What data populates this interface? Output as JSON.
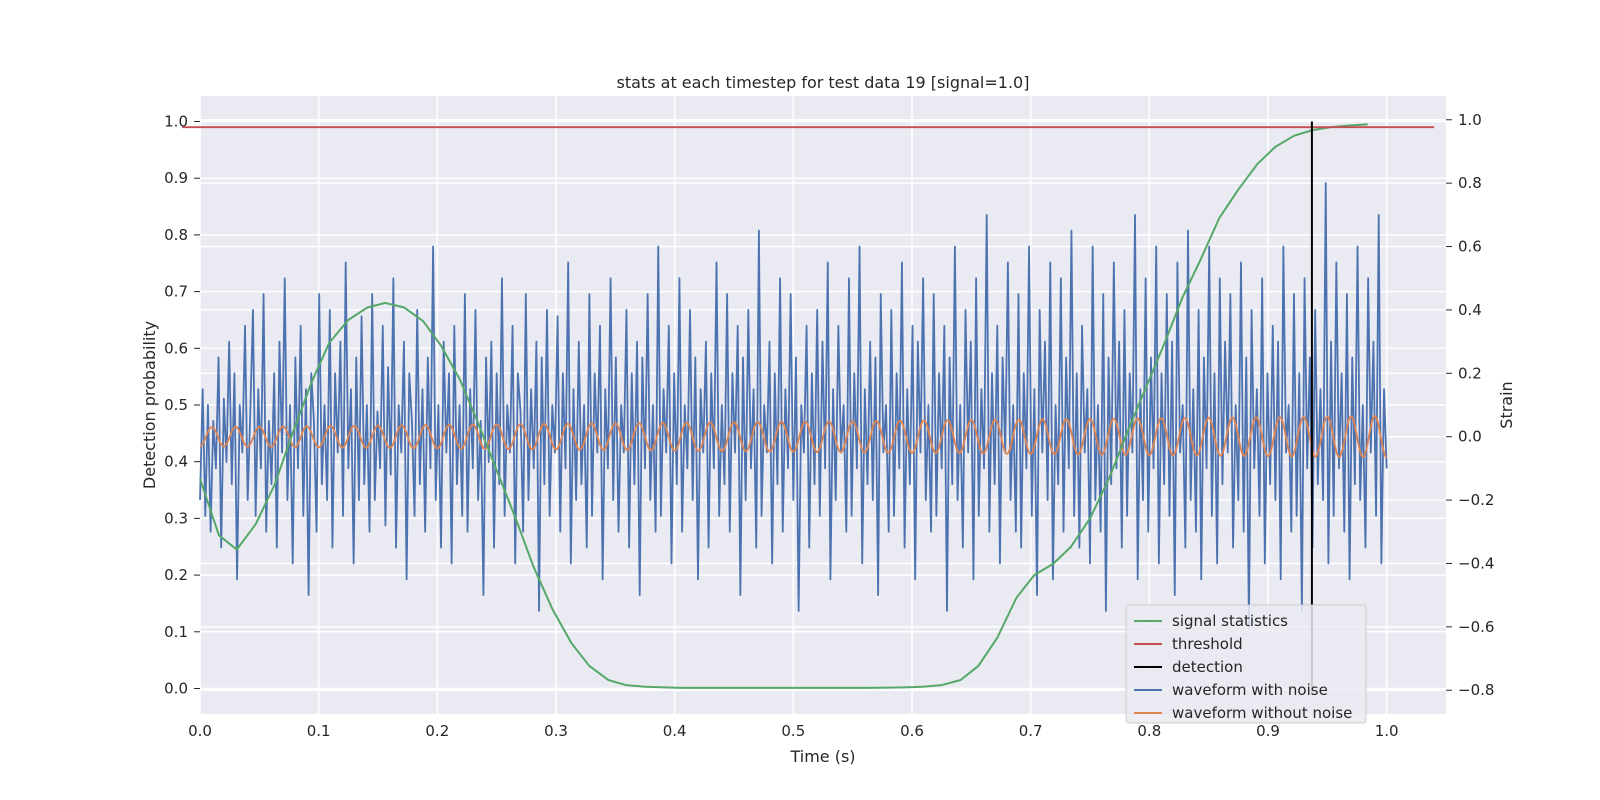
{
  "chart_data": {
    "type": "line",
    "title": "stats at each timestep for test data 19 [signal=1.0]",
    "xlabel": "Time (s)",
    "ylabel_left": "Detection probability",
    "ylabel_right": "Strain",
    "xlim": [
      0.0,
      1.05
    ],
    "ylim_left": [
      -0.045,
      1.045
    ],
    "ylim_right": [
      -0.875,
      1.075
    ],
    "x_ticks": [
      0.0,
      0.1,
      0.2,
      0.3,
      0.4,
      0.5,
      0.6,
      0.7,
      0.8,
      0.9,
      1.0
    ],
    "y_ticks_left": [
      0.0,
      0.1,
      0.2,
      0.3,
      0.4,
      0.5,
      0.6,
      0.7,
      0.8,
      0.9,
      1.0
    ],
    "y_ticks_right": [
      -0.8,
      -0.6,
      -0.4,
      -0.2,
      0.0,
      0.2,
      0.4,
      0.6,
      0.8,
      1.0
    ],
    "x_tick_labels": [
      "0.0",
      "0.1",
      "0.2",
      "0.3",
      "0.4",
      "0.5",
      "0.6",
      "0.7",
      "0.8",
      "0.9",
      "1.0"
    ],
    "y_tick_labels_left": [
      "0.0",
      "0.1",
      "0.2",
      "0.3",
      "0.4",
      "0.5",
      "0.6",
      "0.7",
      "0.8",
      "0.9",
      "1.0"
    ],
    "y_tick_labels_right": [
      "−0.8",
      "−0.6",
      "−0.4",
      "−0.2",
      "0.0",
      "0.2",
      "0.4",
      "0.6",
      "0.8",
      "1.0"
    ],
    "grid": true,
    "legend_position": "lower-right",
    "series": [
      {
        "name": "signal statistics",
        "axis": "left",
        "color": "#55a868",
        "x": [
          0.0,
          0.016,
          0.031,
          0.047,
          0.063,
          0.078,
          0.094,
          0.109,
          0.125,
          0.141,
          0.156,
          0.172,
          0.188,
          0.203,
          0.219,
          0.234,
          0.25,
          0.266,
          0.281,
          0.297,
          0.313,
          0.328,
          0.344,
          0.359,
          0.375,
          0.391,
          0.406,
          0.422,
          0.438,
          0.453,
          0.469,
          0.5,
          0.531,
          0.563,
          0.594,
          0.609,
          0.625,
          0.641,
          0.656,
          0.672,
          0.688,
          0.703,
          0.719,
          0.734,
          0.75,
          0.766,
          0.781,
          0.797,
          0.813,
          0.828,
          0.844,
          0.859,
          0.875,
          0.891,
          0.906,
          0.922,
          0.938,
          0.953,
          0.969,
          0.984
        ],
        "y": [
          0.37,
          0.27,
          0.245,
          0.29,
          0.36,
          0.45,
          0.54,
          0.61,
          0.65,
          0.672,
          0.68,
          0.672,
          0.648,
          0.605,
          0.545,
          0.47,
          0.385,
          0.3,
          0.215,
          0.14,
          0.08,
          0.04,
          0.015,
          0.006,
          0.003,
          0.002,
          0.001,
          0.001,
          0.001,
          0.001,
          0.001,
          0.001,
          0.001,
          0.001,
          0.002,
          0.003,
          0.006,
          0.015,
          0.04,
          0.09,
          0.16,
          0.2,
          0.22,
          0.25,
          0.3,
          0.37,
          0.45,
          0.53,
          0.61,
          0.69,
          0.76,
          0.83,
          0.88,
          0.925,
          0.955,
          0.975,
          0.985,
          0.99,
          0.993,
          0.995
        ]
      },
      {
        "name": "threshold",
        "axis": "left",
        "color": "#c44e52",
        "x": [
          -0.015,
          1.04
        ],
        "y": [
          0.99,
          0.99
        ]
      },
      {
        "name": "detection",
        "axis": "left",
        "color": "#000000",
        "x": [
          0.937,
          0.937
        ],
        "y": [
          -0.01,
          1.0
        ]
      },
      {
        "name": "waveform with noise",
        "axis": "right",
        "color": "#4c72b0",
        "t_start": 0.0,
        "t_end": 1.0,
        "y": [
          -0.2,
          0.15,
          -0.25,
          0.1,
          -0.3,
          0.05,
          -0.1,
          0.25,
          -0.35,
          0.12,
          -0.08,
          0.3,
          -0.15,
          0.2,
          -0.45,
          0.1,
          -0.05,
          0.35,
          -0.2,
          0.08,
          0.4,
          -0.25,
          0.15,
          -0.1,
          0.45,
          -0.3,
          0.05,
          -0.15,
          0.2,
          -0.35,
          0.3,
          -0.05,
          0.5,
          -0.2,
          0.1,
          -0.4,
          0.25,
          -0.1,
          0.35,
          -0.25,
          0.15,
          -0.5,
          0.2,
          0.05,
          -0.3,
          0.45,
          -0.15,
          0.1,
          -0.2,
          0.4,
          -0.35,
          0.2,
          -0.05,
          0.3,
          -0.25,
          0.55,
          -0.1,
          0.15,
          -0.4,
          0.25,
          -0.2,
          0.38,
          -0.15,
          0.1,
          -0.3,
          0.45,
          -0.2,
          0.08,
          -0.1,
          0.35,
          -0.28,
          0.22,
          -0.12,
          0.5,
          -0.35,
          0.1,
          -0.05,
          0.3,
          -0.45,
          0.2,
          0.05,
          -0.25,
          0.4,
          -0.15,
          0.15,
          -0.3,
          0.25,
          -0.1,
          0.6,
          -0.2,
          0.1,
          -0.35,
          0.3,
          -0.05,
          0.2,
          -0.4,
          0.35,
          -0.15,
          0.1,
          -0.25,
          0.45,
          -0.3,
          0.15,
          -0.1,
          0.4,
          -0.2,
          0.05,
          -0.5,
          0.25,
          -0.08,
          0.3,
          -0.35,
          0.2,
          -0.15,
          0.5,
          -0.25,
          0.1,
          -0.05,
          0.35,
          -0.4,
          0.2,
          0.08,
          -0.3,
          0.45,
          -0.2,
          0.15,
          -0.1,
          0.3,
          -0.55,
          0.25,
          -0.15,
          0.4,
          -0.25,
          0.1,
          -0.05,
          0.38,
          -0.3,
          0.2,
          -0.1,
          0.55,
          -0.4,
          0.15,
          -0.2,
          0.3,
          -0.15,
          0.1,
          -0.35,
          0.45,
          -0.25,
          0.2,
          -0.05,
          0.35,
          -0.45,
          0.15,
          -0.1,
          0.5,
          -0.2,
          0.25,
          -0.3,
          0.1,
          -0.05,
          0.4,
          -0.35,
          0.2,
          -0.15,
          0.3,
          -0.5,
          0.25,
          -0.1,
          0.45,
          -0.2,
          0.1,
          -0.3,
          0.6,
          -0.25,
          0.15,
          -0.05,
          0.35,
          -0.4,
          0.2,
          -0.15,
          0.5,
          -0.3,
          0.1,
          -0.1,
          0.4,
          -0.2,
          0.25,
          -0.45,
          0.15,
          -0.05,
          0.3,
          -0.35,
          0.2,
          -0.1,
          0.55,
          -0.25,
          0.1,
          -0.15,
          0.45,
          -0.3,
          0.2,
          -0.05,
          0.35,
          -0.5,
          0.25,
          -0.2,
          0.4,
          -0.1,
          0.15,
          -0.35,
          0.65,
          -0.25,
          0.1,
          -0.05,
          0.3,
          -0.4,
          0.2,
          -0.15,
          0.5,
          -0.3,
          0.15,
          -0.1,
          0.45,
          -0.2,
          0.25,
          -0.55,
          0.1,
          -0.05,
          0.35,
          -0.35,
          0.2,
          -0.15,
          0.4,
          -0.25,
          0.3,
          -0.1,
          0.55,
          -0.45,
          0.15,
          -0.2,
          0.35,
          -0.05,
          0.1,
          -0.3,
          0.5,
          -0.25,
          0.2,
          -0.1,
          0.6,
          -0.4,
          0.15,
          -0.15,
          0.3,
          -0.2,
          0.25,
          -0.5,
          0.45,
          -0.05,
          0.1,
          -0.3,
          0.4,
          -0.25,
          0.2,
          -0.1,
          0.55,
          -0.35,
          0.15,
          -0.15,
          0.35,
          -0.45,
          0.3,
          -0.05,
          0.5,
          -0.2,
          0.1,
          -0.3,
          0.45,
          -0.25,
          0.2,
          -0.1,
          0.35,
          -0.55,
          0.25,
          -0.15,
          0.6,
          -0.2,
          0.1,
          -0.35,
          0.4,
          -0.05,
          0.3,
          -0.45,
          0.5,
          -0.25,
          0.15,
          -0.1,
          0.7,
          -0.3,
          0.2,
          -0.15,
          0.35,
          -0.4,
          0.25,
          -0.05,
          0.55,
          -0.2,
          0.1,
          -0.3,
          0.45,
          -0.35,
          0.2,
          -0.1,
          0.6,
          -0.25,
          0.15,
          -0.5,
          0.4,
          -0.05,
          0.3,
          -0.2,
          0.55,
          -0.45,
          0.1,
          -0.15,
          0.5,
          -0.3,
          0.25,
          -0.1,
          0.65,
          -0.25,
          0.2,
          -0.35,
          0.35,
          -0.05,
          0.15,
          -0.4,
          0.6,
          -0.2,
          0.1,
          -0.3,
          0.45,
          -0.55,
          0.25,
          -0.15,
          0.55,
          -0.1,
          0.3,
          -0.35,
          0.4,
          -0.25,
          0.2,
          -0.05,
          0.7,
          -0.45,
          0.15,
          -0.2,
          0.5,
          -0.3,
          0.25,
          -0.1,
          0.6,
          -0.4,
          0.2,
          -0.15,
          0.45,
          -0.25,
          0.3,
          -0.5,
          0.55,
          -0.05,
          0.1,
          -0.35,
          0.65,
          -0.2,
          0.15,
          -0.3,
          0.4,
          -0.45,
          0.25,
          -0.1,
          0.6,
          -0.25,
          0.2,
          -0.4,
          0.5,
          -0.15,
          0.3,
          -0.05,
          0.45,
          -0.35,
          0.1,
          -0.2,
          0.55,
          -0.3,
          0.25,
          -0.6,
          0.4,
          -0.1,
          0.15,
          -0.25,
          0.5,
          -0.4,
          0.2,
          -0.15,
          0.35,
          -0.2,
          0.3,
          -0.45,
          0.6,
          -0.05,
          0.1,
          -0.3,
          0.45,
          -0.25,
          0.2,
          -0.55,
          0.5,
          -0.1,
          0.25,
          -0.35,
          0.4,
          -0.15,
          0.15,
          -0.2,
          0.8,
          -0.4,
          0.3,
          -0.25,
          0.55,
          -0.1,
          0.2,
          -0.3,
          0.45,
          -0.45,
          0.25,
          -0.15,
          0.6,
          -0.2,
          0.1,
          -0.35,
          0.5,
          -0.05,
          0.3,
          -0.25,
          0.7,
          -0.4,
          0.15,
          -0.1
        ]
      },
      {
        "name": "waveform without noise",
        "axis": "right",
        "color": "#dd8452",
        "t_start": 0.0,
        "t_end": 1.0,
        "cycles": 50,
        "amp_start": 0.03,
        "amp_end": 0.065
      }
    ]
  }
}
